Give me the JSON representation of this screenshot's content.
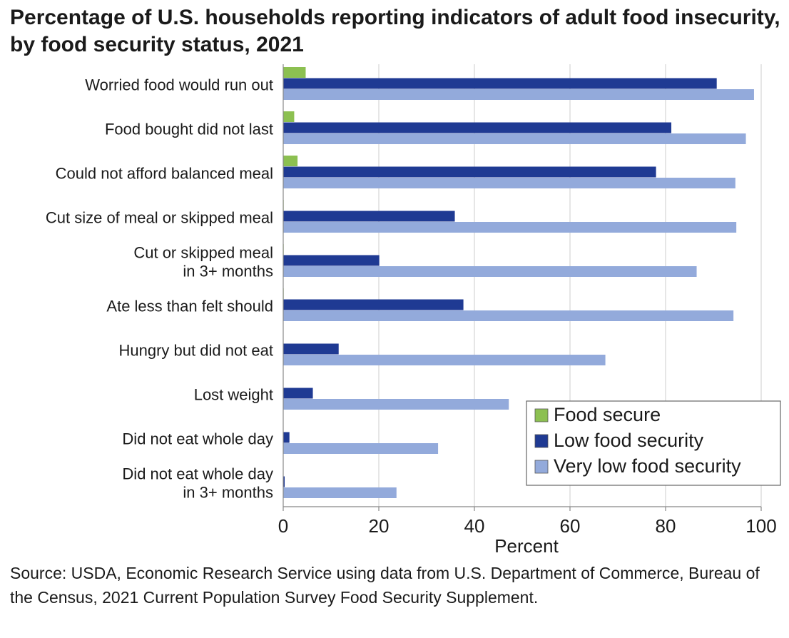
{
  "chart_data": {
    "type": "bar",
    "orientation": "horizontal",
    "title": "Percentage of U.S. households reporting indicators of adult food insecurity, by food security status, 2021",
    "xlabel": "Percent",
    "ylabel": "",
    "xlim": [
      0,
      100
    ],
    "xticks": [
      0,
      20,
      40,
      60,
      80,
      100
    ],
    "grid": "vertical",
    "legend_position": "bottom-right",
    "categories": [
      [
        "Worried food would run out"
      ],
      [
        "Food bought did not last"
      ],
      [
        "Could not afford balanced meal"
      ],
      [
        "Cut size of meal or skipped meal"
      ],
      [
        "Cut or skipped meal",
        "in 3+ months"
      ],
      [
        "Ate less than felt should"
      ],
      [
        "Hungry but did not eat"
      ],
      [
        "Lost weight"
      ],
      [
        "Did not eat whole day"
      ],
      [
        "Did not eat whole day",
        "in 3+ months"
      ]
    ],
    "series": [
      {
        "name": "Food secure",
        "color": "#8cc051",
        "values": [
          4.7,
          2.3,
          3.0,
          0.1,
          0.1,
          0.1,
          0.0,
          0.0,
          0.0,
          0.0
        ]
      },
      {
        "name": "Low food security",
        "color": "#1f3a93",
        "values": [
          90.7,
          81.2,
          78.0,
          35.9,
          20.1,
          37.7,
          11.6,
          6.2,
          1.3,
          0.3
        ]
      },
      {
        "name": "Very low food security",
        "color": "#93aadb",
        "values": [
          98.5,
          96.8,
          94.6,
          94.8,
          86.5,
          94.2,
          67.4,
          47.2,
          32.4,
          23.7
        ]
      }
    ]
  },
  "source": "Source: USDA, Economic Research Service using data from U.S. Department of Commerce, Bureau of the Census, 2021 Current Population Survey Food Security Supplement."
}
